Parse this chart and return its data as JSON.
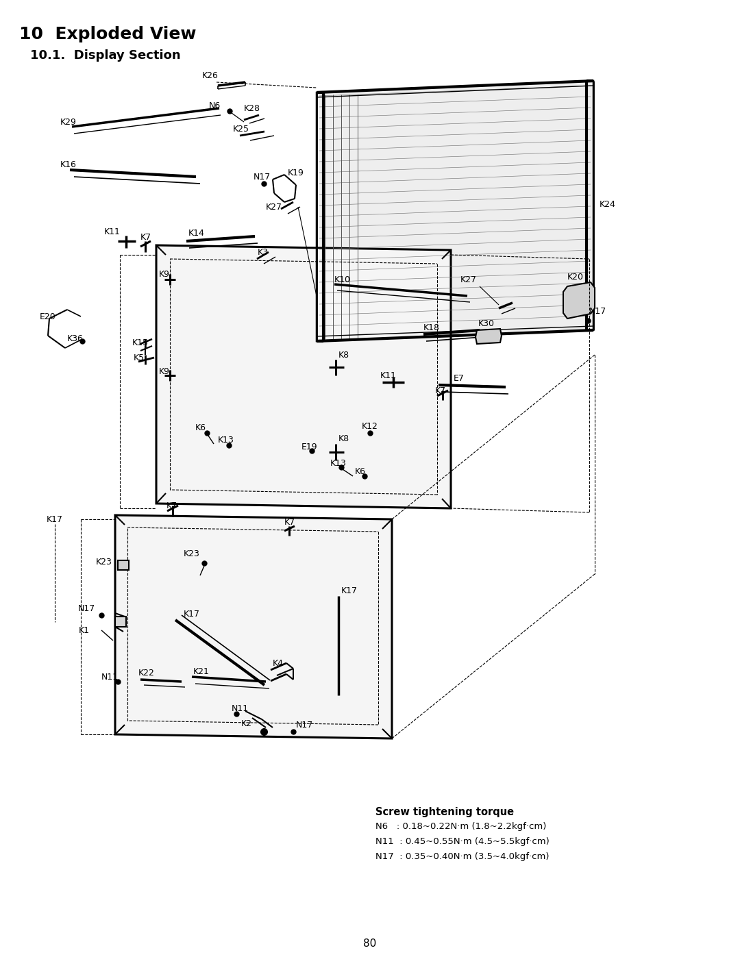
{
  "title": "10  Exploded View",
  "subtitle": "10.1.  Display Section",
  "page_number": "80",
  "bg": "#ffffff",
  "lc": "#000000",
  "screw_torque_title": "Screw tightening torque",
  "screw_torque_lines": [
    "N6   : 0.18~0.22N·m (1.8~2.2kgf·cm)",
    "N11  : 0.45~0.55N·m (4.5~5.5kgf·cm)",
    "N17  : 0.35~0.40N·m (3.5~4.0kgf·cm)"
  ]
}
